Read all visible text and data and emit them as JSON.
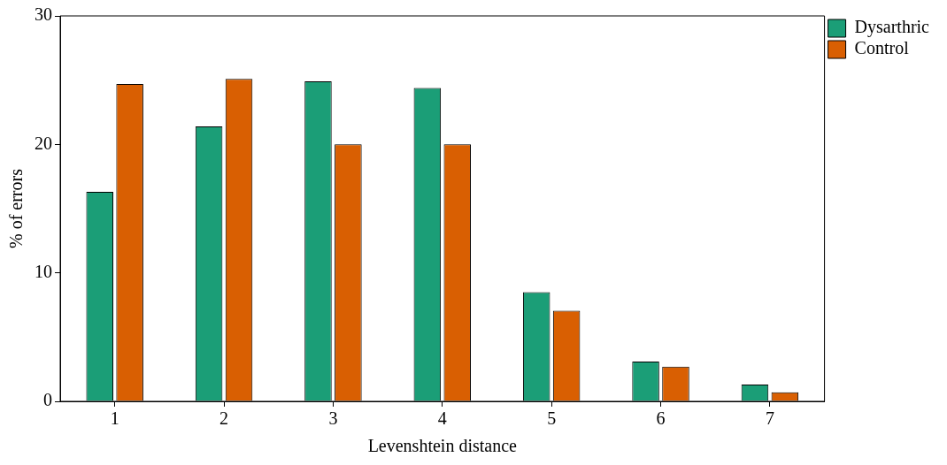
{
  "chart_data": {
    "type": "bar",
    "xlabel": "Levenshtein distance",
    "ylabel": "% of errors",
    "categories": [
      "1",
      "2",
      "3",
      "4",
      "5",
      "6",
      "7"
    ],
    "series": [
      {
        "name": "Dysarthric",
        "color": "#1b9e77",
        "values": [
          16.3,
          21.4,
          24.9,
          24.4,
          8.5,
          3.1,
          1.3
        ]
      },
      {
        "name": "Control",
        "color": "#d95f02",
        "values": [
          24.7,
          25.1,
          20.0,
          20.0,
          7.05,
          2.7,
          0.7
        ]
      }
    ],
    "ylim": [
      0,
      30
    ],
    "yticks": [
      0,
      10,
      20,
      30
    ],
    "grid": false,
    "legend": "right"
  }
}
